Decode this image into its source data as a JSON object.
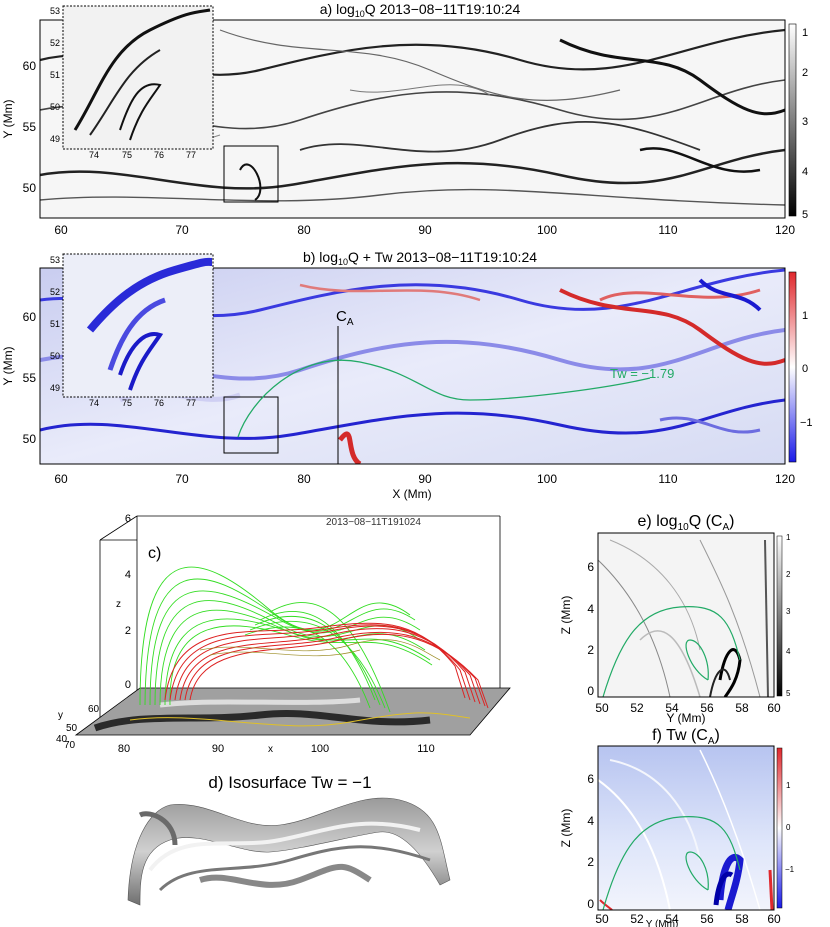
{
  "panel_a": {
    "title_prefix": "a) log",
    "title_sub": "10",
    "title_suffix": "Q  2013−08−11T19:10:24",
    "ylabel": "Y (Mm)",
    "xticks": [
      "60",
      "70",
      "80",
      "90",
      "100",
      "110",
      "120"
    ],
    "yticks": [
      "50",
      "55",
      "60"
    ],
    "cbar_ticks": [
      "1",
      "2",
      "3",
      "4",
      "5"
    ],
    "inset_xticks": [
      "74",
      "75",
      "76",
      "77"
    ],
    "inset_yticks": [
      "49",
      "50",
      "51",
      "52",
      "53"
    ]
  },
  "panel_b": {
    "title_prefix": "b) log",
    "title_sub": "10",
    "title_suffix": "Q + Tw  2013−08−11T19:10:24",
    "ylabel": "Y (Mm)",
    "xlabel": "X (Mm)",
    "xticks": [
      "60",
      "70",
      "80",
      "90",
      "100",
      "110",
      "120"
    ],
    "yticks": [
      "50",
      "55",
      "60"
    ],
    "cbar_ticks": [
      "1",
      "0",
      "−1"
    ],
    "inset_xticks": [
      "74",
      "75",
      "76",
      "77"
    ],
    "inset_yticks": [
      "49",
      "50",
      "51",
      "52",
      "53"
    ],
    "cut_label": "C",
    "cut_label_sub": "A",
    "tw_annotation": "Tw = −1.79"
  },
  "panel_c": {
    "label": "c)",
    "timestamp": "2013−08−11T191024",
    "z_ticks": [
      "6",
      "4",
      "2",
      "0"
    ],
    "z_label": "z",
    "x_ticks": [
      "80",
      "90",
      "100",
      "110"
    ],
    "x_label": "x",
    "y_ticks": [
      "40",
      "50",
      "60"
    ],
    "y_label": "y",
    "corner_tick": "70"
  },
  "panel_d": {
    "title": "d) Isosurface Tw = −1"
  },
  "panel_e": {
    "title_prefix": "e) log",
    "title_sub": "10",
    "title_suffix": "Q (C",
    "title_sub2": "A",
    "title_end": ")",
    "ylabel": "Z (Mm)",
    "xlabel": "Y (Mm)",
    "xticks": [
      "50",
      "52",
      "54",
      "56",
      "58",
      "60"
    ],
    "yticks": [
      "0",
      "2",
      "4",
      "6"
    ],
    "cbar_ticks": [
      "1",
      "2",
      "3",
      "4",
      "5"
    ]
  },
  "panel_f": {
    "title_prefix": "f) Tw (C",
    "title_sub": "A",
    "title_end": ")",
    "ylabel": "Z (Mm)",
    "xlabel": "Y (Mm)",
    "xticks": [
      "50",
      "52",
      "54",
      "56",
      "58",
      "60"
    ],
    "yticks": [
      "0",
      "2",
      "4",
      "6"
    ],
    "cbar_ticks": [
      "1",
      "0",
      "−1"
    ]
  },
  "colors": {
    "positive": "#e0282d",
    "negative": "#2a2ad8",
    "flux_rope": "#22aa66",
    "field_green": "#33dd22",
    "field_red": "#dd2222"
  }
}
